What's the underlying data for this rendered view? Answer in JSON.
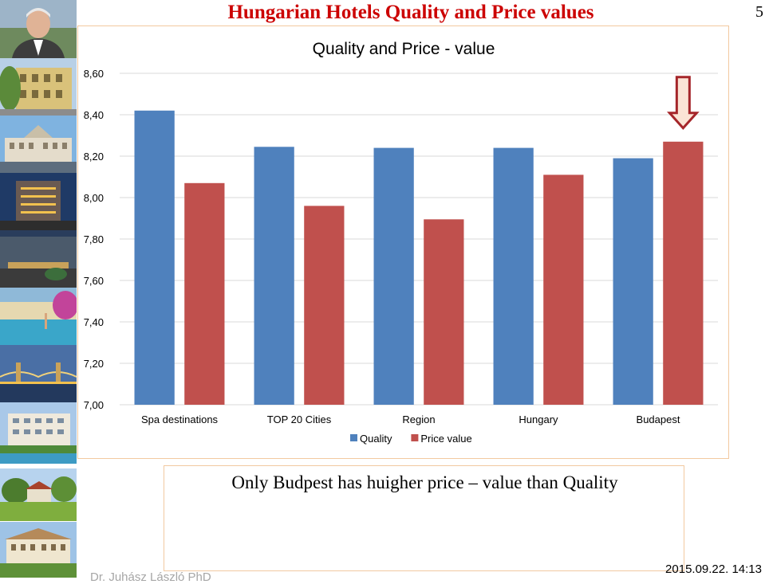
{
  "slide": {
    "title": "Hungarian Hotels Quality and Price values",
    "page_number": "5",
    "caption": "Only Budpest has huigher price – value than Quality",
    "author": "Dr. Juhász László PhD",
    "datetime": "2015.09.22. 14:13"
  },
  "colors": {
    "title": "#cc0000",
    "quality": "#4f81bd",
    "price_value": "#c0504d",
    "arrow_fill": "#fbe4d5",
    "arrow_stroke": "#a5262a"
  },
  "photos": [
    "portrait",
    "yellow-building",
    "palace-hotel",
    "tower-hotel",
    "hotel-entrance",
    "spa-pool",
    "chain-bridge-night",
    "resort-hotel",
    "countryside-hotel",
    "castle-hotel"
  ],
  "chart_data": {
    "type": "bar",
    "title": "Quality and Price - value",
    "categories": [
      "Spa destinations",
      "TOP 20 Cities",
      "Region",
      "Hungary",
      "Budapest"
    ],
    "series": [
      {
        "name": "Quality",
        "values": [
          8.42,
          8.245,
          8.24,
          8.24,
          8.19
        ]
      },
      {
        "name": "Price value",
        "values": [
          8.07,
          7.96,
          7.895,
          8.11,
          8.27
        ]
      }
    ],
    "ylim": [
      7.0,
      8.6
    ],
    "yticks": [
      "7,00",
      "7,20",
      "7,40",
      "7,60",
      "7,80",
      "8,00",
      "8,20",
      "8,40",
      "8,60"
    ],
    "xlabel": "",
    "ylabel": "",
    "grid": true,
    "legend": "bottom",
    "annotation": "arrow pointing down at Budapest Price value bar"
  }
}
